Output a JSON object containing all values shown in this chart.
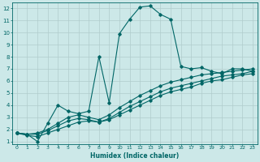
{
  "xlabel": "Humidex (Indice chaleur)",
  "bg_color": "#cce8e8",
  "grid_color": "#b0cccc",
  "line_color": "#006666",
  "xlim": [
    -0.5,
    23.5
  ],
  "ylim": [
    0.8,
    12.5
  ],
  "xticks": [
    0,
    1,
    2,
    3,
    4,
    5,
    6,
    7,
    8,
    9,
    10,
    11,
    12,
    13,
    14,
    15,
    16,
    17,
    18,
    19,
    20,
    21,
    22,
    23
  ],
  "yticks": [
    1,
    2,
    3,
    4,
    5,
    6,
    7,
    8,
    9,
    10,
    11,
    12
  ],
  "line1_x": [
    0,
    1,
    2,
    3,
    4,
    5,
    6,
    7,
    8,
    9,
    10,
    11,
    12,
    13,
    14,
    15,
    16,
    17,
    18,
    19,
    20,
    21,
    22,
    23
  ],
  "line1_y": [
    1.7,
    1.6,
    1.0,
    2.5,
    4.0,
    3.5,
    3.3,
    3.5,
    8.0,
    4.2,
    9.9,
    11.1,
    12.1,
    12.2,
    11.5,
    11.1,
    7.2,
    7.0,
    7.1,
    6.8,
    6.6,
    7.0,
    7.0,
    6.8
  ],
  "line2_x": [
    0,
    1,
    2,
    3,
    4,
    5,
    6,
    7,
    8,
    9,
    10,
    11,
    12,
    13,
    14,
    15,
    16,
    17,
    18,
    19,
    20,
    21,
    22,
    23
  ],
  "line2_y": [
    1.7,
    1.6,
    1.7,
    2.0,
    2.5,
    3.0,
    3.2,
    3.0,
    2.8,
    3.2,
    3.8,
    4.3,
    4.8,
    5.2,
    5.6,
    5.9,
    6.1,
    6.3,
    6.5,
    6.6,
    6.7,
    6.8,
    6.9,
    7.0
  ],
  "line3_x": [
    0,
    1,
    2,
    3,
    4,
    5,
    6,
    7,
    8,
    9,
    10,
    11,
    12,
    13,
    14,
    15,
    16,
    17,
    18,
    19,
    20,
    21,
    22,
    23
  ],
  "line3_y": [
    1.7,
    1.6,
    1.6,
    1.9,
    2.3,
    2.7,
    2.9,
    2.8,
    2.6,
    2.9,
    3.4,
    3.9,
    4.3,
    4.7,
    5.1,
    5.4,
    5.6,
    5.8,
    6.0,
    6.2,
    6.4,
    6.5,
    6.6,
    6.8
  ],
  "line4_x": [
    0,
    1,
    2,
    3,
    4,
    5,
    6,
    7,
    8,
    9,
    10,
    11,
    12,
    13,
    14,
    15,
    16,
    17,
    18,
    19,
    20,
    21,
    22,
    23
  ],
  "line4_y": [
    1.7,
    1.5,
    1.4,
    1.7,
    2.0,
    2.3,
    2.6,
    2.7,
    2.6,
    2.8,
    3.2,
    3.6,
    4.0,
    4.4,
    4.8,
    5.1,
    5.3,
    5.5,
    5.8,
    6.0,
    6.1,
    6.3,
    6.5,
    6.6
  ]
}
